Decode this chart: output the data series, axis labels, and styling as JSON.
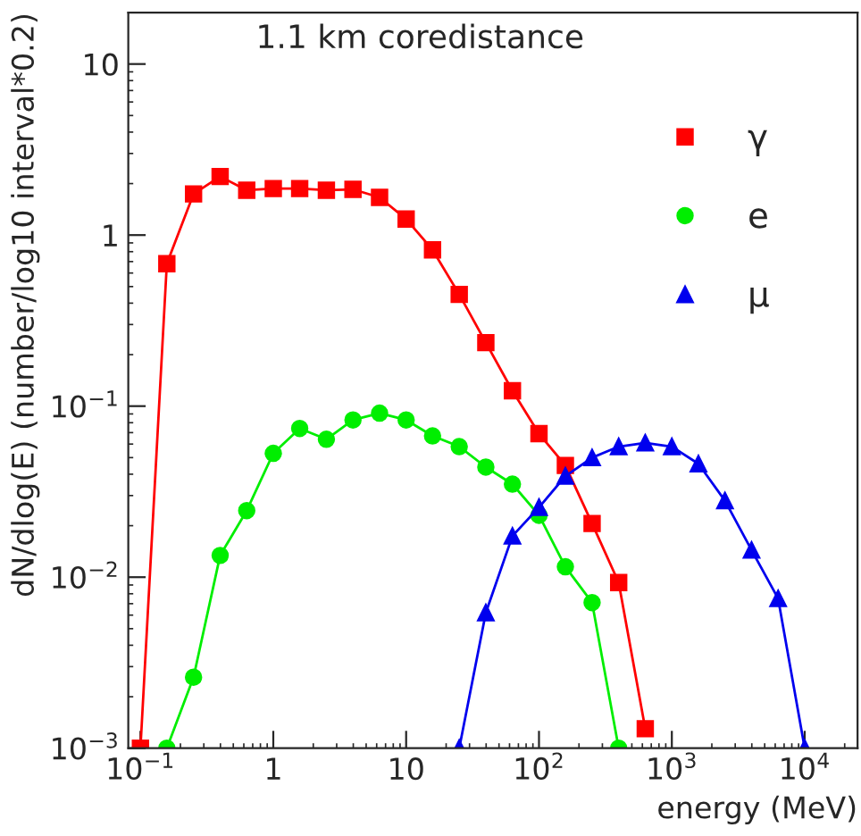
{
  "chart_data": {
    "type": "line",
    "title": "1.1 km coredistance",
    "xlabel": "energy (MeV)",
    "ylabel": "dN/dlog(E) (number/log10 interval*0.2)",
    "log": "xy",
    "grid": false,
    "legend": "top right",
    "xlim": [
      0.081,
      25000
    ],
    "ylim": [
      0.001,
      20
    ],
    "xticks": [
      {
        "value": 0.1,
        "label": "10$^{−1}$"
      },
      1,
      10,
      {
        "value": 100,
        "label": "10$^{2}$"
      },
      {
        "value": 1000,
        "label": "10$^{3}$"
      },
      {
        "value": 10000,
        "label": "10$^{4}$"
      }
    ],
    "yticks": [
      {
        "value": 0.001,
        "label": "10$^{−3}$"
      },
      {
        "value": 0.01,
        "label": "10$^{−2}$"
      },
      {
        "value": 0.1,
        "label": "10$^{−1}$"
      },
      1,
      10
    ],
    "series": [
      {
        "name": "γ",
        "color": "#ff0000",
        "marker": "square",
        "x": [
          0.1,
          0.158,
          0.251,
          0.398,
          0.631,
          1,
          1.58,
          2.51,
          3.98,
          6.31,
          10,
          15.8,
          25.1,
          39.8,
          63.1,
          100,
          158,
          251,
          398,
          631
        ],
        "values": [
          0.001,
          0.68,
          1.74,
          2.2,
          1.83,
          1.87,
          1.87,
          1.83,
          1.85,
          1.66,
          1.24,
          0.82,
          0.45,
          0.235,
          0.123,
          0.069,
          0.045,
          0.0206,
          0.0093,
          0.0013
        ]
      },
      {
        "name": "e",
        "color": "#00ee00",
        "marker": "circle",
        "x": [
          0.158,
          0.251,
          0.398,
          0.631,
          1,
          1.58,
          2.51,
          3.98,
          6.31,
          10,
          15.8,
          25.1,
          39.8,
          63.1,
          100,
          158,
          251,
          398
        ],
        "values": [
          0.001,
          0.0026,
          0.0134,
          0.0245,
          0.053,
          0.074,
          0.064,
          0.083,
          0.091,
          0.083,
          0.067,
          0.058,
          0.044,
          0.035,
          0.023,
          0.0115,
          0.0071,
          0.001
        ]
      },
      {
        "name": "μ",
        "color": "#0000ee",
        "marker": "triangle",
        "x": [
          25.1,
          39.8,
          63.1,
          100,
          158,
          251,
          398,
          631,
          1000,
          1585,
          2512,
          3981,
          6310,
          10000
        ],
        "values": [
          0.001,
          0.0062,
          0.0174,
          0.0256,
          0.039,
          0.05,
          0.058,
          0.061,
          0.058,
          0.046,
          0.028,
          0.0144,
          0.0075,
          0.001
        ]
      }
    ]
  }
}
